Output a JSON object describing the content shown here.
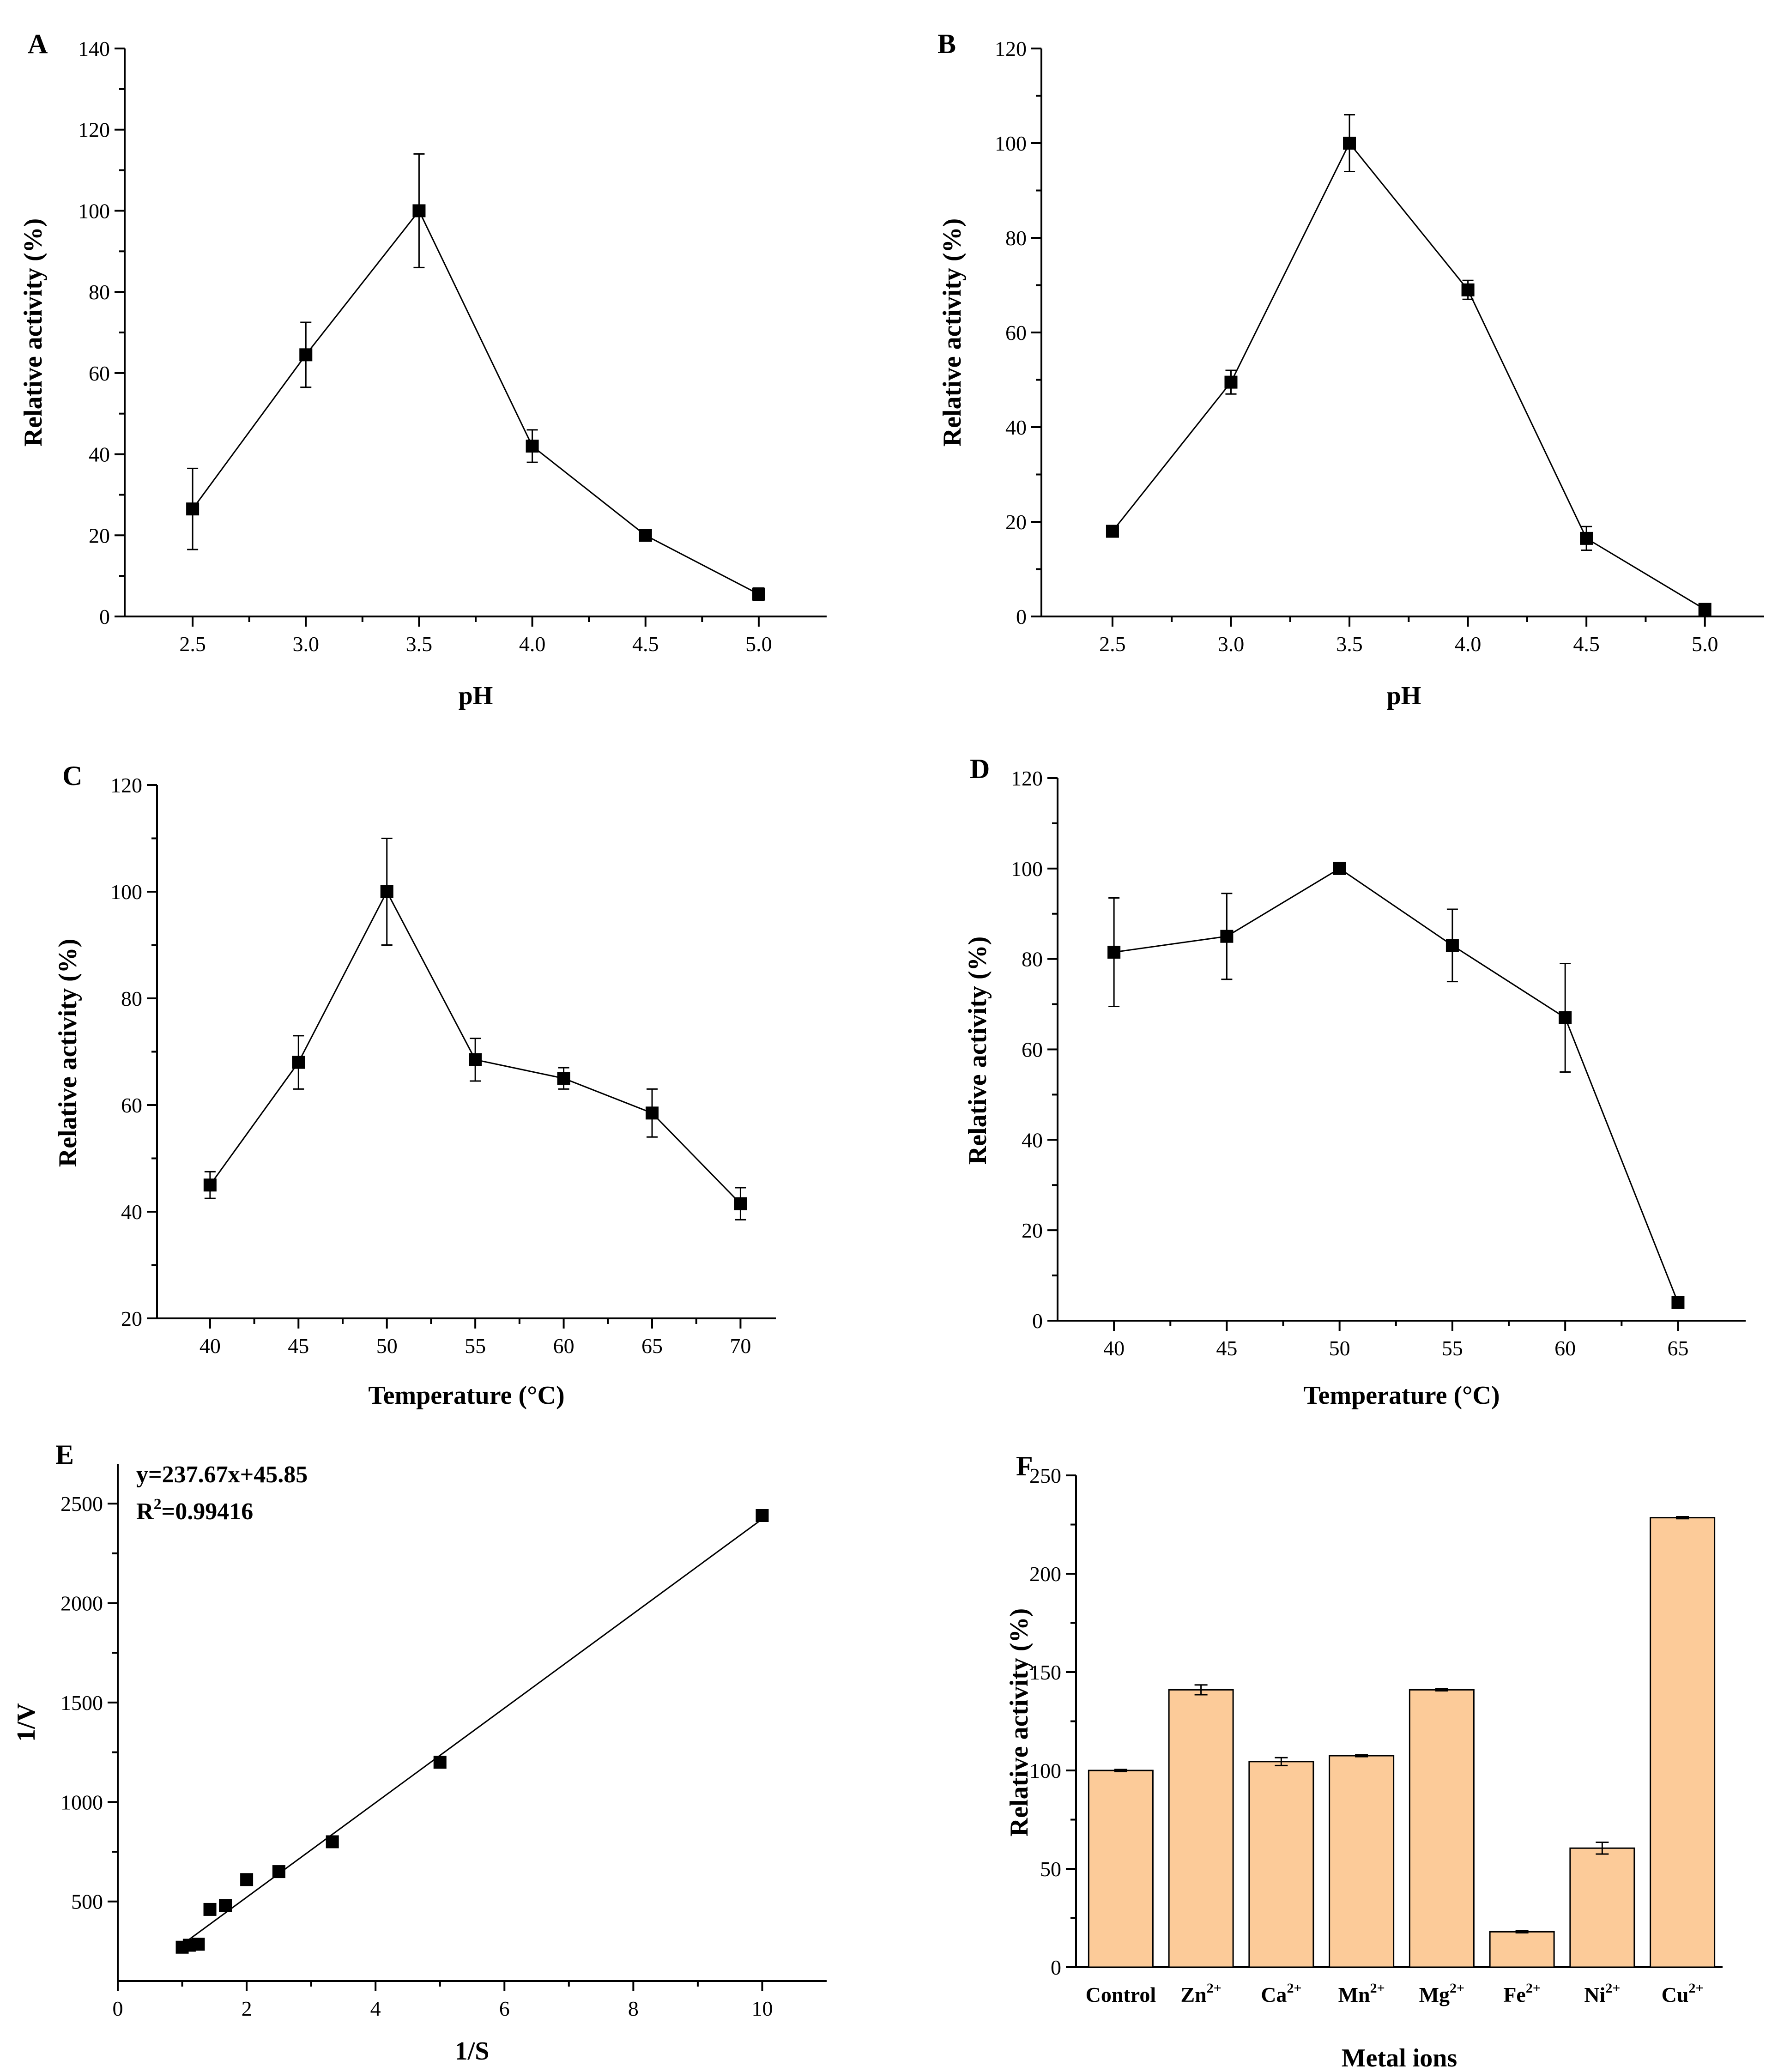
{
  "colors": {
    "bar_fill": "#FCCB99",
    "ink": "#000000"
  },
  "chart_data": [
    {
      "id": "A",
      "type": "line",
      "panel_label": "A",
      "xlabel": "pH",
      "ylabel": "Relative activity (%)",
      "xlim": [
        2.2,
        5.3
      ],
      "ylim": [
        0,
        140
      ],
      "xticks": [
        2.5,
        3.0,
        3.5,
        4.0,
        4.5,
        5.0
      ],
      "xtick_labels": [
        "2.5",
        "3.0",
        "3.5",
        "4.0",
        "4.5",
        "5.0"
      ],
      "yticks": [
        0,
        20,
        40,
        60,
        80,
        100,
        120,
        140
      ],
      "ytick_labels": [
        "0",
        "20",
        "40",
        "60",
        "80",
        "100",
        "120",
        "140"
      ],
      "x": [
        2.5,
        3.0,
        3.5,
        4.0,
        4.5,
        5.0
      ],
      "y": [
        26.5,
        64.5,
        100,
        42,
        20,
        5.5
      ],
      "err": [
        10,
        8,
        14,
        4,
        1,
        1.5
      ]
    },
    {
      "id": "B",
      "type": "line",
      "panel_label": "B",
      "xlabel": "pH",
      "ylabel": "Relative activity (%)",
      "xlim": [
        2.2,
        5.25
      ],
      "ylim": [
        0,
        120
      ],
      "xticks": [
        2.5,
        3.0,
        3.5,
        4.0,
        4.5,
        5.0
      ],
      "xtick_labels": [
        "2.5",
        "3.0",
        "3.5",
        "4.0",
        "4.5",
        "5.0"
      ],
      "yticks": [
        0,
        20,
        40,
        60,
        80,
        100,
        120
      ],
      "ytick_labels": [
        "0",
        "20",
        "40",
        "60",
        "80",
        "100",
        "120"
      ],
      "x": [
        2.5,
        3.0,
        3.5,
        4.0,
        4.5,
        5.0
      ],
      "y": [
        18,
        49.5,
        100,
        69,
        16.5,
        1.5
      ],
      "err": [
        0.8,
        2.5,
        6,
        2,
        2.5,
        0.5
      ]
    },
    {
      "id": "C",
      "type": "line",
      "panel_label": "C",
      "xlabel": "Temperature (°C)",
      "ylabel": "Relative activity (%)",
      "xlim": [
        37,
        72
      ],
      "ylim": [
        20,
        120
      ],
      "xticks": [
        40,
        45,
        50,
        55,
        60,
        65,
        70
      ],
      "xtick_labels": [
        "40",
        "45",
        "50",
        "55",
        "60",
        "65",
        "70"
      ],
      "yticks": [
        20,
        40,
        60,
        80,
        100,
        120
      ],
      "ytick_labels": [
        "20",
        "40",
        "60",
        "80",
        "100",
        "120"
      ],
      "x": [
        40,
        45,
        50,
        55,
        60,
        65,
        70
      ],
      "y": [
        45,
        68,
        100,
        68.5,
        65,
        58.5,
        41.5
      ],
      "err": [
        2.5,
        5,
        10,
        4,
        2,
        4.5,
        3
      ]
    },
    {
      "id": "D",
      "type": "line",
      "panel_label": "D",
      "xlabel": "Temperature (°C)",
      "ylabel": "Relative activity (%)",
      "xlim": [
        37.5,
        68
      ],
      "ylim": [
        0,
        120
      ],
      "xticks": [
        40,
        45,
        50,
        55,
        60,
        65
      ],
      "xtick_labels": [
        "40",
        "45",
        "50",
        "55",
        "60",
        "65"
      ],
      "yticks": [
        0,
        20,
        40,
        60,
        80,
        100,
        120
      ],
      "ytick_labels": [
        "0",
        "20",
        "40",
        "60",
        "80",
        "100",
        "120"
      ],
      "x": [
        40,
        45,
        50,
        55,
        60,
        65
      ],
      "y": [
        81.5,
        85,
        100,
        83,
        67,
        4
      ],
      "err": [
        12,
        9.5,
        0.5,
        8,
        12,
        0.5
      ]
    },
    {
      "id": "E",
      "type": "scatter",
      "panel_label": "E",
      "xlabel": "1/S",
      "ylabel": "1/V",
      "xlim": [
        0,
        11
      ],
      "ylim": [
        100,
        2700
      ],
      "xticks": [
        0,
        2,
        4,
        6,
        8,
        10
      ],
      "xtick_labels": [
        "0",
        "2",
        "4",
        "6",
        "8",
        "10"
      ],
      "yticks": [
        500,
        1000,
        1500,
        2000,
        2500
      ],
      "ytick_labels": [
        "500",
        "1000",
        "1500",
        "2000",
        "2500"
      ],
      "x": [
        1.0,
        1.11,
        1.25,
        1.43,
        1.67,
        2.0,
        2.5,
        3.33,
        5.0,
        10.0
      ],
      "y": [
        270,
        280,
        285,
        460,
        480,
        610,
        650,
        800,
        1200,
        2440
      ],
      "fit": {
        "slope": 237.67,
        "intercept": 45.85,
        "x_range": [
          1.0,
          10.0
        ]
      },
      "equation": "y=237.67x+45.85",
      "r2_label": "R",
      "r2_exponent": "2",
      "r2_value": "=0.99416"
    },
    {
      "id": "F",
      "type": "bar",
      "panel_label": "F",
      "xlabel": "Metal ions",
      "ylabel": "Relative activity (%)",
      "ylim": [
        0,
        250
      ],
      "yticks": [
        0,
        50,
        100,
        150,
        200,
        250
      ],
      "ytick_labels": [
        "0",
        "50",
        "100",
        "150",
        "200",
        "250"
      ],
      "categories": [
        {
          "base": "Control",
          "sup": ""
        },
        {
          "base": "Zn",
          "sup": "2+"
        },
        {
          "base": "Ca",
          "sup": "2+"
        },
        {
          "base": "Mn",
          "sup": "2+"
        },
        {
          "base": "Mg",
          "sup": "2+"
        },
        {
          "base": "Fe",
          "sup": "2+"
        },
        {
          "base": "Ni",
          "sup": "2+"
        },
        {
          "base": "Cu",
          "sup": "2+"
        }
      ],
      "values": [
        100,
        141,
        104.5,
        107.5,
        141,
        18,
        60.5,
        228.5
      ],
      "err": [
        0.5,
        2.5,
        2,
        0.5,
        0.5,
        0.5,
        3,
        0.5
      ]
    }
  ]
}
